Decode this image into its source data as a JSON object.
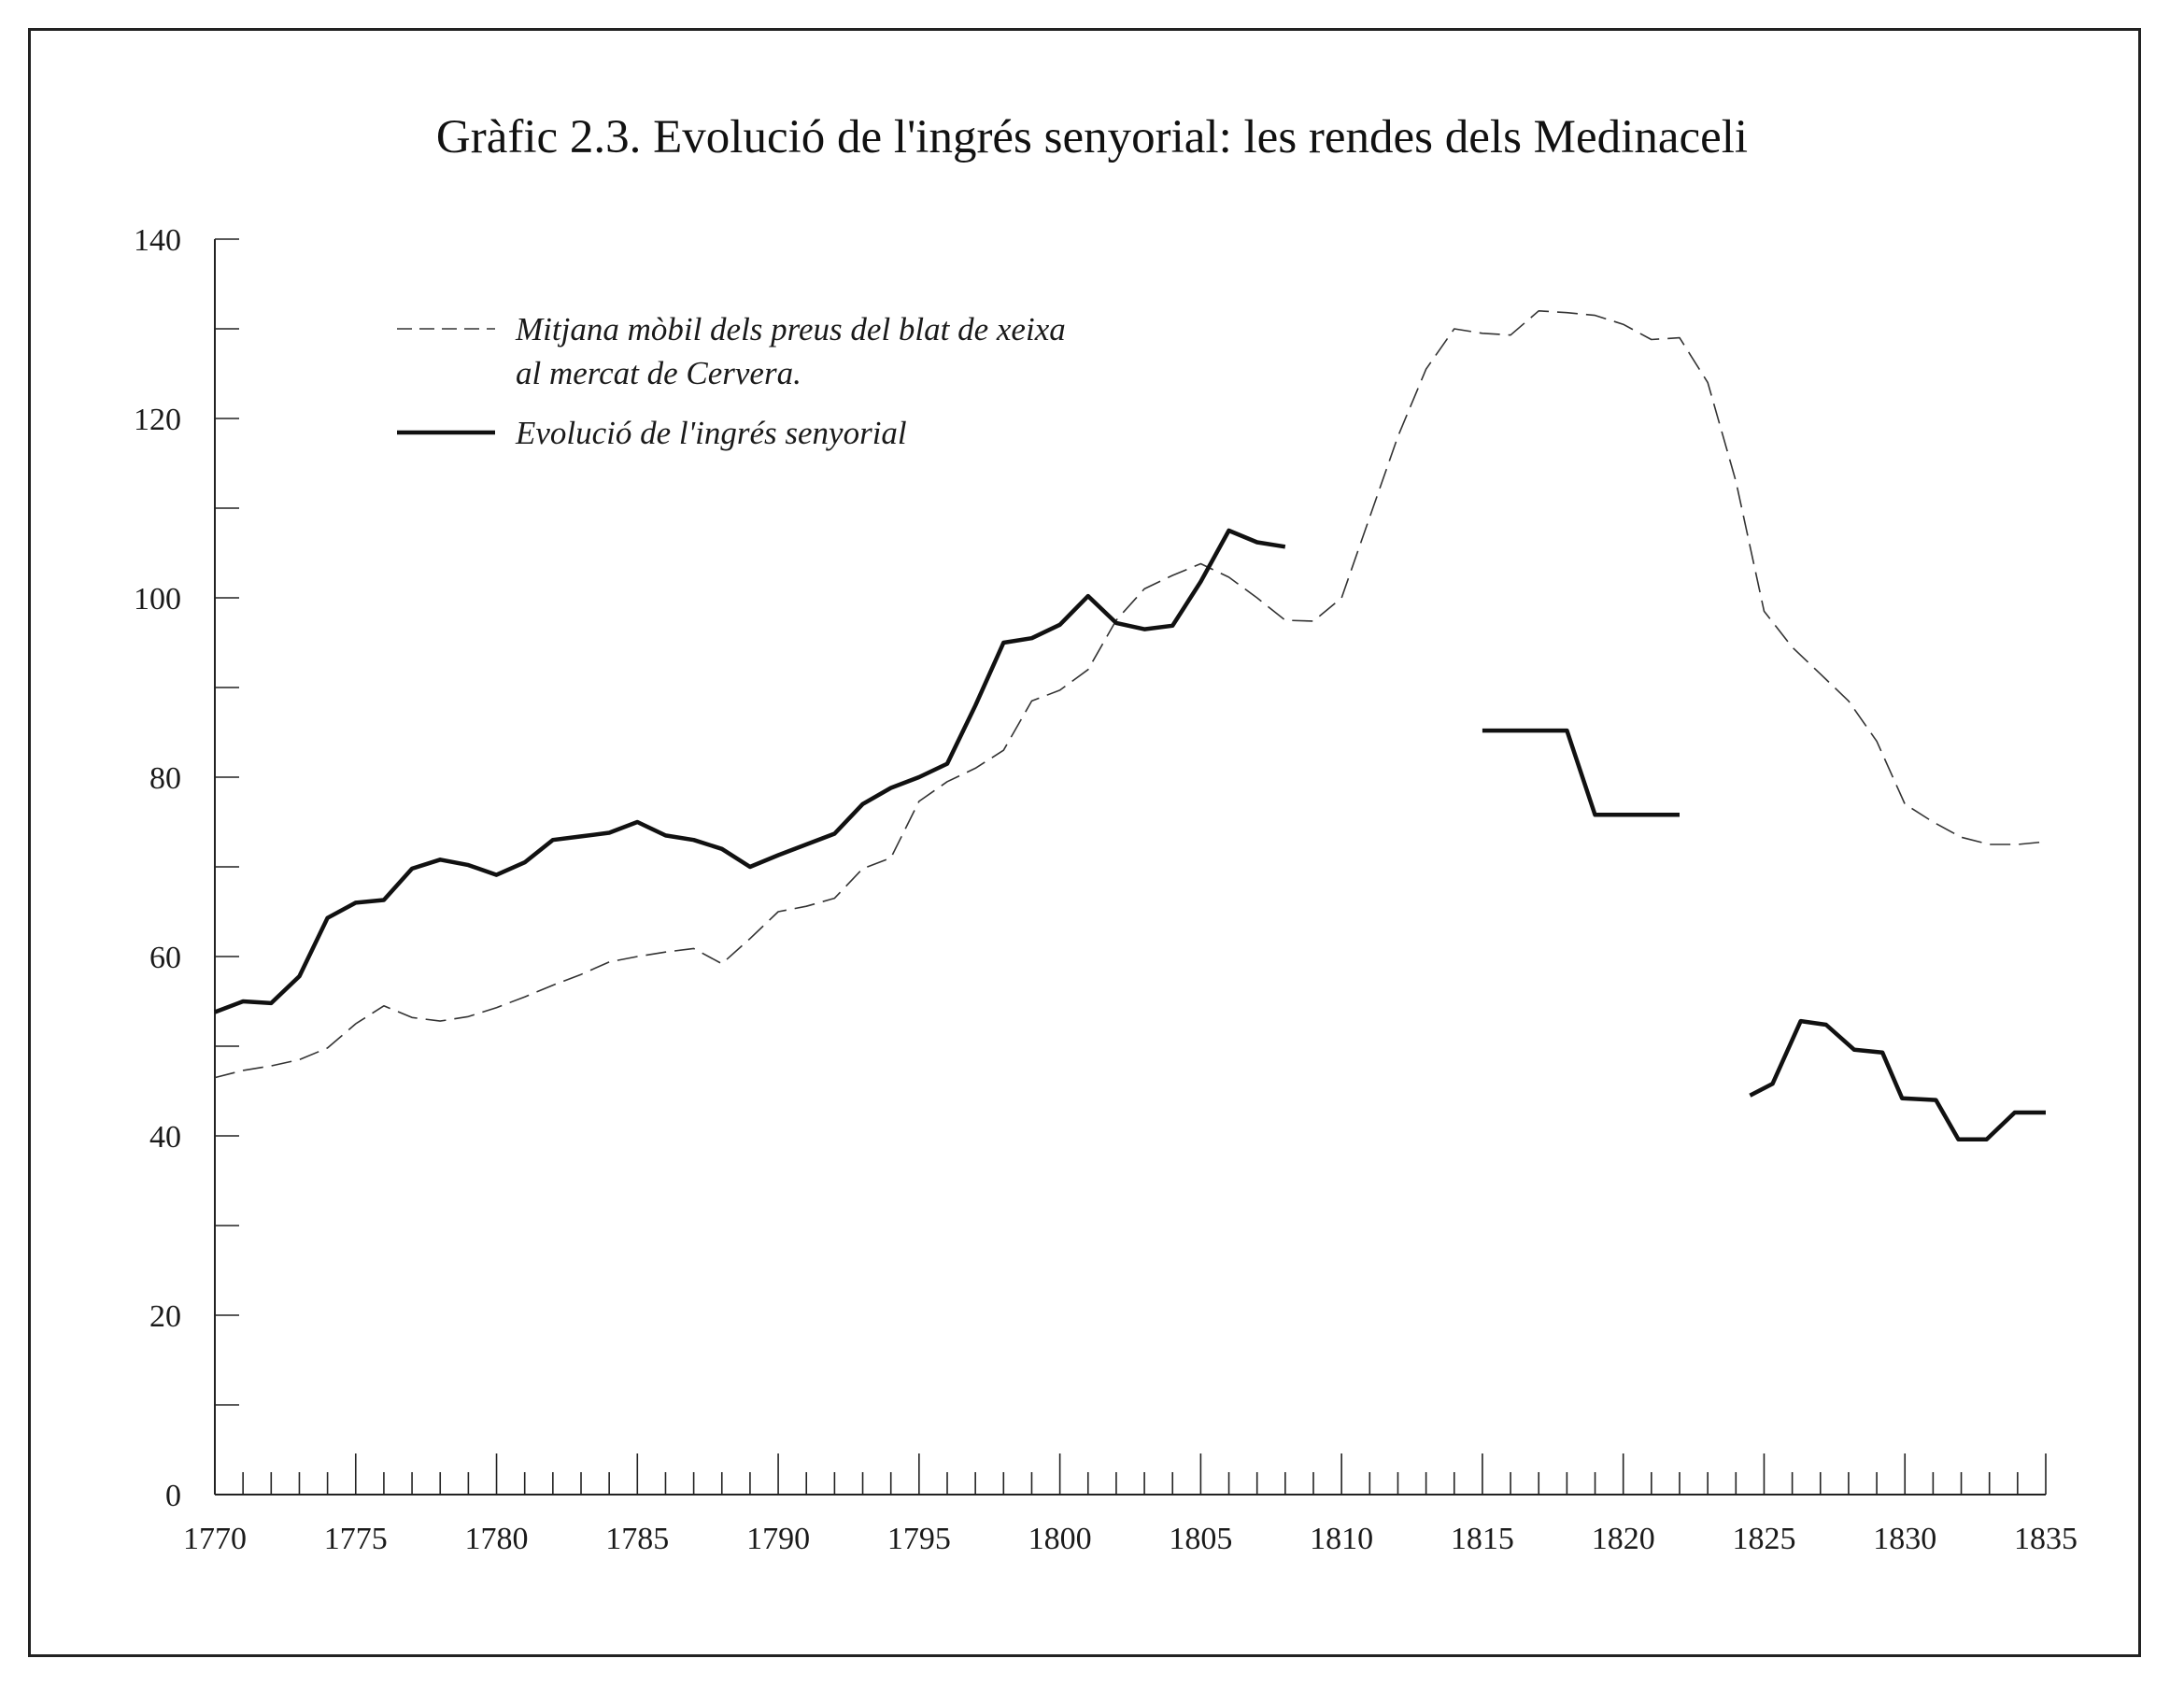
{
  "chart_data": {
    "type": "line",
    "title": "Gràfic 2.3. Evolució de l'ingrés senyorial: les rendes dels Medinaceli",
    "xlabel": "",
    "ylabel": "",
    "xlim": [
      1770,
      1835
    ],
    "ylim": [
      0,
      140
    ],
    "x_ticks": [
      "1770",
      "1775",
      "1780",
      "1785",
      "1790",
      "1795",
      "1800",
      "1805",
      "1810",
      "1815",
      "1820",
      "1825",
      "1830",
      "1835"
    ],
    "y_ticks": [
      "0",
      "20",
      "40",
      "60",
      "80",
      "100",
      "120",
      "140"
    ],
    "grid": false,
    "legend_position": "top-left",
    "series": [
      {
        "name": "Mitjana mòbil dels preus del blat de xeixa al mercat de Cervera.",
        "legend_lines": [
          "Mitjana mòbil dels preus del blat de xeixa",
          "al mercat de Cervera."
        ],
        "style": "dashed",
        "color": "#333333",
        "segments": [
          [
            [
              1770,
              46.5
            ],
            [
              1771,
              47.3
            ],
            [
              1772,
              47.8
            ],
            [
              1773,
              48.5
            ],
            [
              1774,
              49.8
            ],
            [
              1775,
              52.5
            ],
            [
              1776,
              54.5
            ],
            [
              1777,
              53.2
            ],
            [
              1778,
              52.8
            ],
            [
              1779,
              53.3
            ],
            [
              1780,
              54.3
            ],
            [
              1781,
              55.5
            ],
            [
              1782,
              56.8
            ],
            [
              1783,
              58.0
            ],
            [
              1784,
              59.4
            ],
            [
              1785,
              60.0
            ],
            [
              1786,
              60.5
            ],
            [
              1787,
              60.9
            ],
            [
              1788,
              59.2
            ],
            [
              1789,
              62.0
            ],
            [
              1790,
              65.0
            ],
            [
              1791,
              65.6
            ],
            [
              1792,
              66.5
            ],
            [
              1793,
              69.8
            ],
            [
              1794,
              71.0
            ],
            [
              1795,
              77.3
            ],
            [
              1796,
              79.5
            ],
            [
              1797,
              81.0
            ],
            [
              1798,
              83.0
            ],
            [
              1799,
              88.5
            ],
            [
              1800,
              89.7
            ],
            [
              1801,
              92.0
            ],
            [
              1802,
              97.5
            ],
            [
              1803,
              101.0
            ],
            [
              1804,
              102.5
            ],
            [
              1805,
              103.8
            ],
            [
              1806,
              102.3
            ],
            [
              1807,
              100.0
            ],
            [
              1808,
              97.5
            ],
            [
              1809,
              97.4
            ],
            [
              1810,
              100.0
            ],
            [
              1811,
              109.0
            ],
            [
              1812,
              118.0
            ],
            [
              1813,
              125.5
            ],
            [
              1814,
              130.0
            ],
            [
              1815,
              129.5
            ],
            [
              1816,
              129.3
            ],
            [
              1817,
              132.0
            ],
            [
              1818,
              131.8
            ],
            [
              1819,
              131.5
            ],
            [
              1820,
              130.5
            ],
            [
              1821,
              128.8
            ],
            [
              1822,
              129.0
            ],
            [
              1823,
              124.0
            ],
            [
              1824,
              113.0
            ],
            [
              1825,
              98.5
            ],
            [
              1826,
              94.5
            ],
            [
              1827,
              91.5
            ],
            [
              1828,
              88.5
            ],
            [
              1829,
              84.0
            ],
            [
              1830,
              77.0
            ],
            [
              1831,
              75.0
            ],
            [
              1832,
              73.3
            ],
            [
              1833,
              72.5
            ],
            [
              1834,
              72.5
            ],
            [
              1835,
              72.8
            ]
          ]
        ]
      },
      {
        "name": "Evolució de l'ingrés senyorial",
        "legend_lines": [
          "Evolució de l'ingrés senyorial"
        ],
        "style": "solid",
        "color": "#111111",
        "segments": [
          [
            [
              1770,
              53.8
            ],
            [
              1771,
              55.0
            ],
            [
              1772,
              54.8
            ],
            [
              1773,
              57.8
            ],
            [
              1774,
              64.3
            ],
            [
              1775,
              66.0
            ],
            [
              1776,
              66.3
            ],
            [
              1777,
              69.8
            ],
            [
              1778,
              70.8
            ],
            [
              1779,
              70.2
            ],
            [
              1780,
              69.1
            ],
            [
              1781,
              70.5
            ],
            [
              1782,
              73.0
            ],
            [
              1783,
              73.4
            ],
            [
              1784,
              73.8
            ],
            [
              1785,
              75.0
            ],
            [
              1786,
              73.5
            ],
            [
              1787,
              73.0
            ],
            [
              1788,
              72.0
            ],
            [
              1789,
              70.0
            ],
            [
              1790,
              71.3
            ],
            [
              1791,
              72.5
            ],
            [
              1792,
              73.7
            ],
            [
              1793,
              77.0
            ],
            [
              1794,
              78.8
            ],
            [
              1795,
              80.0
            ],
            [
              1796,
              81.5
            ],
            [
              1797,
              88.0
            ],
            [
              1798,
              95.0
            ],
            [
              1799,
              95.5
            ],
            [
              1800,
              97.0
            ],
            [
              1801,
              100.2
            ],
            [
              1802,
              97.2
            ],
            [
              1803,
              96.5
            ],
            [
              1804,
              96.9
            ],
            [
              1805,
              101.8
            ],
            [
              1806,
              107.5
            ],
            [
              1807,
              106.2
            ],
            [
              1808,
              105.7
            ]
          ],
          [
            [
              1815,
              85.2
            ],
            [
              1816,
              85.2
            ],
            [
              1817,
              85.2
            ],
            [
              1818,
              85.2
            ],
            [
              1819,
              75.8
            ],
            [
              1820,
              75.8
            ],
            [
              1821,
              75.8
            ],
            [
              1822,
              75.8
            ]
          ],
          [
            [
              1824.5,
              44.5
            ],
            [
              1825.3,
              45.8
            ],
            [
              1826.3,
              52.8
            ],
            [
              1827.2,
              52.4
            ],
            [
              1828.2,
              49.6
            ],
            [
              1829.2,
              49.3
            ],
            [
              1829.9,
              44.2
            ],
            [
              1831.1,
              44.0
            ],
            [
              1831.9,
              39.6
            ],
            [
              1832.9,
              39.6
            ],
            [
              1833.9,
              42.6
            ],
            [
              1835,
              42.6
            ]
          ]
        ]
      }
    ]
  }
}
